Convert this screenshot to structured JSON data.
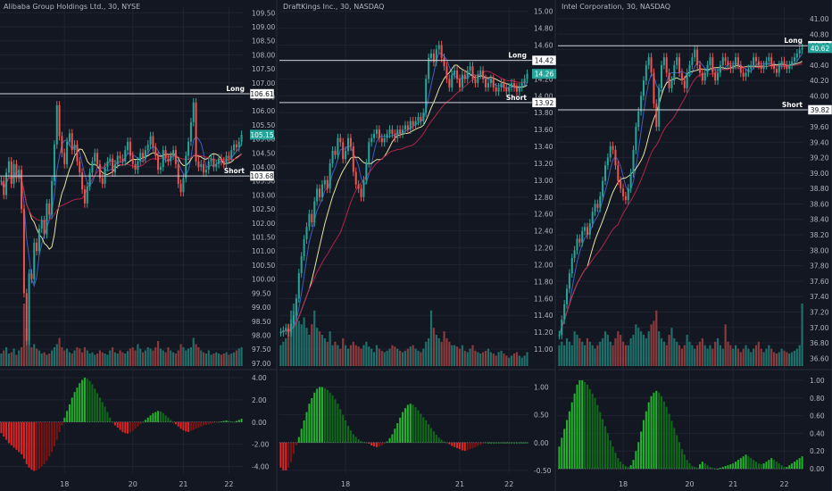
{
  "theme": {
    "background": "#131722",
    "grid": "#1f2330",
    "separator": "#2a2e39",
    "text": "#b2b5be",
    "candle_up": "#26a69a",
    "candle_down": "#ef5350",
    "volume_up": "#1f6f6a",
    "volume_down": "#8c3a3c",
    "ma_fast": "#3f5fbf",
    "ma_mid": "#e8e3a3",
    "ma_slow": "#b2234a",
    "osc_up_strong": "#22b42a",
    "osc_up_weak": "#0f6b1a",
    "osc_down_strong": "#e12424",
    "osc_down_weak": "#7d1414",
    "level_line": "#d1d4dc"
  },
  "chart_data": [
    {
      "type": "candlestick",
      "title": "Alibaba Group Holdings Ltd., 30, NYSE",
      "x_ticks": [
        "18",
        "20",
        "21",
        "22"
      ],
      "price_ticks": [
        "109.50",
        "109.00",
        "108.50",
        "108.00",
        "107.50",
        "107.00",
        "106.50",
        "106.00",
        "105.50",
        "105.00",
        "104.50",
        "104.00",
        "103.50",
        "103.00",
        "102.50",
        "102.00",
        "101.50",
        "101.00",
        "100.50",
        "100.00",
        "99.50",
        "99.00",
        "98.50",
        "98.00",
        "97.50",
        "97.00"
      ],
      "ylim": [
        96.9,
        109.7
      ],
      "levels": [
        {
          "name": "Long",
          "value": 106.61,
          "label": "106.61"
        },
        {
          "name": "Short",
          "value": 103.68,
          "label": "103.68"
        }
      ],
      "last_price": {
        "value": 105.15,
        "label": "105.15"
      },
      "osc_ticks": [
        "4.00",
        "2.00",
        "0.00",
        "-2.00",
        "-4.00"
      ],
      "osc_ylim": [
        -4.6,
        4.4
      ],
      "candles_n": 96,
      "x_tick_index": [
        25,
        52,
        72,
        90
      ],
      "close": [
        103.5,
        103.0,
        103.8,
        104.2,
        103.4,
        104.1,
        103.6,
        103.9,
        102.5,
        99.5,
        97.8,
        100.2,
        100.0,
        101.3,
        101.0,
        101.8,
        102.1,
        101.6,
        102.7,
        102.3,
        103.5,
        104.8,
        106.2,
        105.1,
        104.5,
        104.1,
        104.9,
        105.2,
        104.6,
        104.8,
        104.2,
        103.8,
        103.2,
        102.7,
        103.3,
        103.8,
        104.2,
        104.5,
        104.1,
        103.6,
        103.4,
        104.0,
        104.2,
        104.3,
        103.8,
        104.1,
        104.4,
        104.3,
        104.2,
        104.6,
        104.9,
        104.4,
        104.1,
        103.9,
        104.2,
        104.5,
        104.3,
        104.6,
        104.8,
        105.1,
        104.7,
        104.4,
        103.9,
        104.0,
        104.6,
        104.3,
        104.2,
        104.4,
        104.6,
        104.1,
        103.4,
        103.1,
        103.6,
        104.4,
        104.9,
        105.6,
        106.3,
        104.2,
        104.0,
        104.1,
        103.8,
        103.9,
        104.2,
        104.3,
        104.0,
        104.1,
        104.3,
        104.2,
        104.1,
        104.4,
        104.3,
        104.6,
        104.8,
        104.7,
        104.9,
        105.15
      ],
      "volume": [
        0.2,
        0.25,
        0.3,
        0.2,
        0.22,
        0.28,
        0.18,
        0.25,
        0.3,
        1.0,
        0.6,
        0.4,
        0.3,
        0.35,
        0.28,
        0.25,
        0.2,
        0.22,
        0.18,
        0.2,
        0.25,
        0.3,
        0.35,
        0.45,
        0.3,
        0.25,
        0.28,
        0.22,
        0.2,
        0.25,
        0.3,
        0.28,
        0.22,
        0.3,
        0.25,
        0.2,
        0.22,
        0.18,
        0.2,
        0.25,
        0.22,
        0.2,
        0.18,
        0.25,
        0.3,
        0.22,
        0.2,
        0.25,
        0.22,
        0.2,
        0.24,
        0.28,
        0.3,
        0.25,
        0.35,
        0.28,
        0.22,
        0.25,
        0.3,
        0.28,
        0.25,
        0.3,
        0.4,
        0.28,
        0.25,
        0.22,
        0.3,
        0.25,
        0.22,
        0.2,
        0.25,
        0.35,
        0.3,
        0.25,
        0.28,
        0.3,
        0.45,
        0.35,
        0.3,
        0.25,
        0.22,
        0.2,
        0.25,
        0.18,
        0.2,
        0.22,
        0.2,
        0.18,
        0.2,
        0.22,
        0.18,
        0.2,
        0.22,
        0.25,
        0.28,
        0.3
      ],
      "osc": [
        -1.0,
        -1.3,
        -1.6,
        -1.9,
        -2.1,
        -2.3,
        -2.5,
        -2.7,
        -2.9,
        -3.3,
        -3.8,
        -4.1,
        -4.3,
        -4.4,
        -4.35,
        -4.2,
        -4.0,
        -3.8,
        -3.5,
        -3.1,
        -2.7,
        -2.2,
        -1.6,
        -0.9,
        -0.3,
        0.4,
        1.0,
        1.6,
        2.2,
        2.7,
        3.1,
        3.5,
        3.8,
        4.0,
        3.9,
        3.7,
        3.4,
        3.0,
        2.6,
        2.2,
        1.8,
        1.4,
        0.9,
        0.4,
        0.0,
        -0.3,
        -0.5,
        -0.7,
        -0.9,
        -1.0,
        -1.05,
        -0.95,
        -0.8,
        -0.6,
        -0.4,
        -0.2,
        0.0,
        0.2,
        0.4,
        0.6,
        0.8,
        0.9,
        1.0,
        0.95,
        0.8,
        0.6,
        0.4,
        0.2,
        0.0,
        -0.2,
        -0.4,
        -0.6,
        -0.75,
        -0.85,
        -0.9,
        -0.8,
        -0.7,
        -0.6,
        -0.5,
        -0.4,
        -0.3,
        -0.25,
        -0.2,
        -0.15,
        -0.1,
        -0.05,
        0.0,
        0.05,
        0.1,
        0.15,
        0.1,
        0.05,
        0.0,
        0.1,
        0.2,
        0.3
      ]
    },
    {
      "type": "candlestick",
      "title": "DraftKings Inc., 30, NASDAQ",
      "x_ticks": [
        "18",
        "21",
        "22"
      ],
      "price_ticks": [
        "15.00",
        "14.80",
        "14.60",
        "14.40",
        "14.20",
        "14.00",
        "13.80",
        "13.60",
        "13.40",
        "13.20",
        "13.00",
        "12.80",
        "12.60",
        "12.40",
        "12.20",
        "12.00",
        "11.80",
        "11.60",
        "11.40",
        "11.20",
        "11.00"
      ],
      "ylim": [
        10.8,
        15.05
      ],
      "levels": [
        {
          "name": "Long",
          "value": 14.42,
          "label": "14.42"
        },
        {
          "name": "Short",
          "value": 13.92,
          "label": "13.92"
        }
      ],
      "last_price": {
        "value": 14.26,
        "label": "14.26"
      },
      "osc_ticks": [
        "1.00",
        "0.50",
        "0.00",
        "-0.50"
      ],
      "osc_ylim": [
        -0.55,
        1.25
      ],
      "candles_n": 96,
      "x_tick_index": [
        25,
        69,
        88
      ],
      "close": [
        11.2,
        11.22,
        11.25,
        11.2,
        11.3,
        11.4,
        11.6,
        11.9,
        12.1,
        12.3,
        12.45,
        12.6,
        12.5,
        12.75,
        12.9,
        12.8,
        12.95,
        13.0,
        12.9,
        13.2,
        13.35,
        13.3,
        13.5,
        13.45,
        13.25,
        13.35,
        13.5,
        13.4,
        13.1,
        12.95,
        12.9,
        12.8,
        13.0,
        13.2,
        13.45,
        13.5,
        13.55,
        13.6,
        13.5,
        13.45,
        13.5,
        13.55,
        13.6,
        13.55,
        13.5,
        13.6,
        13.55,
        13.6,
        13.65,
        13.6,
        13.7,
        13.65,
        13.7,
        13.75,
        13.7,
        13.8,
        14.2,
        14.45,
        14.5,
        14.4,
        14.55,
        14.6,
        14.45,
        14.35,
        14.2,
        14.1,
        14.25,
        14.3,
        14.2,
        14.1,
        14.25,
        14.2,
        14.3,
        14.35,
        14.2,
        14.15,
        14.25,
        14.3,
        14.2,
        14.1,
        14.15,
        14.2,
        14.1,
        14.05,
        14.1,
        14.15,
        14.1,
        14.05,
        14.1,
        14.15,
        14.1,
        14.05,
        14.1,
        14.15,
        14.2,
        14.26
      ],
      "volume": [
        0.3,
        0.35,
        0.4,
        0.6,
        0.8,
        0.9,
        0.75,
        0.65,
        0.6,
        0.7,
        0.55,
        0.45,
        0.6,
        0.8,
        0.55,
        0.5,
        0.45,
        0.4,
        0.35,
        0.5,
        0.3,
        0.35,
        0.3,
        0.25,
        0.4,
        0.3,
        0.25,
        0.3,
        0.35,
        0.3,
        0.28,
        0.25,
        0.3,
        0.35,
        0.28,
        0.25,
        0.2,
        0.3,
        0.25,
        0.22,
        0.2,
        0.22,
        0.25,
        0.3,
        0.28,
        0.25,
        0.22,
        0.2,
        0.22,
        0.25,
        0.28,
        0.3,
        0.25,
        0.22,
        0.2,
        0.25,
        0.35,
        0.4,
        0.8,
        0.55,
        0.45,
        0.4,
        0.35,
        0.5,
        0.4,
        0.35,
        0.3,
        0.3,
        0.28,
        0.25,
        0.3,
        0.22,
        0.2,
        0.25,
        0.3,
        0.22,
        0.2,
        0.18,
        0.2,
        0.22,
        0.25,
        0.2,
        0.18,
        0.15,
        0.2,
        0.22,
        0.18,
        0.15,
        0.12,
        0.15,
        0.18,
        0.2,
        0.15,
        0.12,
        0.15,
        0.2
      ],
      "osc": [
        -0.45,
        -0.5,
        -0.5,
        -0.45,
        -0.35,
        -0.2,
        -0.05,
        0.1,
        0.25,
        0.4,
        0.55,
        0.7,
        0.8,
        0.9,
        0.97,
        1.0,
        1.0,
        0.98,
        0.95,
        0.9,
        0.85,
        0.78,
        0.7,
        0.6,
        0.5,
        0.4,
        0.3,
        0.22,
        0.15,
        0.1,
        0.06,
        0.03,
        0.01,
        0.0,
        -0.02,
        -0.05,
        -0.07,
        -0.08,
        -0.07,
        -0.05,
        -0.02,
        0.02,
        0.08,
        0.15,
        0.25,
        0.35,
        0.45,
        0.55,
        0.62,
        0.68,
        0.7,
        0.68,
        0.64,
        0.58,
        0.52,
        0.46,
        0.4,
        0.33,
        0.26,
        0.2,
        0.14,
        0.09,
        0.05,
        0.02,
        0.0,
        -0.03,
        -0.06,
        -0.08,
        -0.1,
        -0.12,
        -0.14,
        -0.15,
        -0.14,
        -0.12,
        -0.1,
        -0.08,
        -0.06,
        -0.04,
        -0.02,
        0.0,
        0.0,
        0.0,
        0.0,
        0.0,
        0.0,
        0.0,
        0.0,
        0.0,
        0.0,
        0.0,
        0.0,
        0.0,
        0.0,
        0.0,
        0.0,
        0.0
      ]
    },
    {
      "type": "candlestick",
      "title": "Intel Corporation, 30, NASDAQ",
      "x_ticks": [
        "18",
        "20",
        "21",
        "22"
      ],
      "price_ticks": [
        "41.00",
        "40.80",
        "40.60",
        "40.40",
        "40.20",
        "40.00",
        "39.80",
        "39.60",
        "39.40",
        "39.20",
        "39.00",
        "38.80",
        "38.60",
        "38.40",
        "38.20",
        "38.00",
        "37.80",
        "37.60",
        "37.40",
        "37.20",
        "37.00",
        "36.80",
        "36.60"
      ],
      "ylim": [
        36.5,
        41.15
      ],
      "levels": [
        {
          "name": "Long",
          "value": 40.65,
          "label": "40.65"
        },
        {
          "name": "Short",
          "value": 39.82,
          "label": "39.82"
        }
      ],
      "last_price": {
        "value": 40.62,
        "label": "40.62"
      },
      "osc_ticks": [
        "1.00",
        "0.80",
        "0.60",
        "0.40",
        "0.20",
        "0.00"
      ],
      "osc_ylim": [
        -0.05,
        1.08
      ],
      "candles_n": 96,
      "x_tick_index": [
        25,
        51,
        68,
        88
      ],
      "close": [
        36.9,
        37.1,
        37.3,
        37.5,
        37.7,
        37.9,
        38.0,
        38.15,
        38.1,
        38.25,
        38.3,
        38.2,
        38.35,
        38.5,
        38.6,
        38.55,
        38.7,
        38.9,
        39.1,
        39.2,
        39.35,
        39.3,
        39.1,
        38.9,
        38.8,
        38.7,
        38.65,
        38.8,
        39.0,
        39.3,
        39.6,
        39.8,
        40.0,
        40.2,
        40.4,
        40.5,
        40.3,
        39.9,
        39.6,
        40.1,
        40.4,
        40.5,
        40.3,
        40.1,
        40.2,
        40.4,
        40.5,
        40.3,
        40.2,
        40.1,
        40.3,
        40.4,
        40.5,
        40.6,
        40.4,
        40.3,
        40.2,
        40.3,
        40.4,
        40.5,
        40.3,
        40.2,
        40.3,
        40.4,
        40.5,
        40.45,
        40.4,
        40.35,
        40.4,
        40.5,
        40.4,
        40.3,
        40.25,
        40.3,
        40.35,
        40.4,
        40.5,
        40.45,
        40.4,
        40.35,
        40.4,
        40.45,
        40.5,
        40.4,
        40.35,
        40.3,
        40.4,
        40.45,
        40.4,
        40.35,
        40.4,
        40.45,
        40.5,
        40.55,
        40.6,
        40.62
      ],
      "volume": [
        0.3,
        0.35,
        0.3,
        0.4,
        0.35,
        0.3,
        0.5,
        0.45,
        0.4,
        0.35,
        0.3,
        0.4,
        0.35,
        0.3,
        0.25,
        0.3,
        0.35,
        0.4,
        0.5,
        0.45,
        0.35,
        0.3,
        0.4,
        0.5,
        0.45,
        0.35,
        0.3,
        0.3,
        0.4,
        0.45,
        0.6,
        0.55,
        0.5,
        0.45,
        0.4,
        0.5,
        0.6,
        0.65,
        0.8,
        0.5,
        0.4,
        0.35,
        0.3,
        0.45,
        0.55,
        0.4,
        0.35,
        0.3,
        0.25,
        0.3,
        0.45,
        0.35,
        0.3,
        0.25,
        0.3,
        0.35,
        0.4,
        0.3,
        0.25,
        0.3,
        0.25,
        0.35,
        0.4,
        0.3,
        0.25,
        0.6,
        0.35,
        0.3,
        0.25,
        0.3,
        0.25,
        0.2,
        0.25,
        0.3,
        0.25,
        0.2,
        0.25,
        0.3,
        0.35,
        0.25,
        0.2,
        0.25,
        0.3,
        0.25,
        0.2,
        0.18,
        0.2,
        0.25,
        0.22,
        0.2,
        0.18,
        0.2,
        0.22,
        0.25,
        0.3,
        0.9
      ],
      "osc": [
        0.25,
        0.35,
        0.45,
        0.55,
        0.65,
        0.75,
        0.85,
        0.95,
        1.0,
        1.0,
        0.98,
        0.95,
        0.9,
        0.85,
        0.8,
        0.72,
        0.64,
        0.56,
        0.48,
        0.4,
        0.32,
        0.25,
        0.18,
        0.12,
        0.08,
        0.05,
        0.03,
        0.02,
        0.04,
        0.1,
        0.2,
        0.3,
        0.42,
        0.55,
        0.65,
        0.75,
        0.82,
        0.86,
        0.88,
        0.86,
        0.82,
        0.76,
        0.7,
        0.62,
        0.54,
        0.46,
        0.38,
        0.3,
        0.22,
        0.16,
        0.1,
        0.06,
        0.03,
        0.02,
        0.01,
        0.05,
        0.08,
        0.06,
        0.04,
        0.02,
        0.01,
        0.0,
        0.0,
        0.01,
        0.02,
        0.03,
        0.04,
        0.05,
        0.06,
        0.08,
        0.1,
        0.12,
        0.14,
        0.16,
        0.14,
        0.12,
        0.1,
        0.08,
        0.06,
        0.05,
        0.06,
        0.08,
        0.1,
        0.12,
        0.1,
        0.08,
        0.06,
        0.04,
        0.02,
        0.02,
        0.04,
        0.06,
        0.08,
        0.1,
        0.12,
        0.14
      ]
    }
  ]
}
